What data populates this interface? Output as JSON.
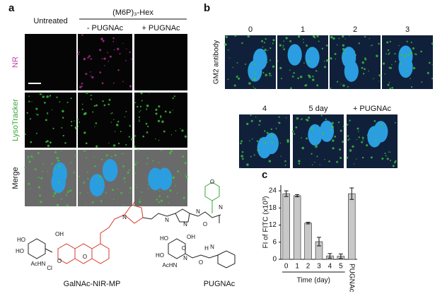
{
  "panel_a": {
    "label": "a",
    "group": "(M6P)₃-Hex",
    "columns": [
      "Untreated",
      "- PUGNAc",
      "+ PUGNAc"
    ],
    "rows": [
      "NR",
      "LysoTracker",
      "Merge"
    ]
  },
  "panel_b": {
    "label": "b",
    "ylabel": "GM2 antibody",
    "timepoints": [
      "0",
      "1",
      "2",
      "3",
      "4",
      "5 day",
      "+ PUGNAc"
    ]
  },
  "structures": {
    "names": [
      "GalNAc-NIR-MP",
      "PUGNAc"
    ],
    "atoms": [
      "HO",
      "OH",
      "HO",
      "AcHN",
      "O",
      "Cl",
      "O",
      "N",
      "N",
      "N",
      "N",
      "O",
      "O",
      "N",
      "HO",
      "OH",
      "HO",
      "AcHN",
      "N",
      "O",
      "H",
      "N",
      "O"
    ]
  },
  "chart_data": {
    "type": "bar",
    "panel_label": "c",
    "ylabel": "FI of FITC (x10³)",
    "xlabel": "Time (day)",
    "categories": [
      "0",
      "1",
      "2",
      "3",
      "4",
      "5",
      "PUGNAc"
    ],
    "values": [
      23,
      22.3,
      12.7,
      6.2,
      1.2,
      1.1,
      23
    ],
    "errors": [
      1,
      0.4,
      0.3,
      1.5,
      0.8,
      0.8,
      2
    ],
    "color": "#c8c8c8",
    "ylim": [
      0,
      26
    ],
    "yticks": [
      0,
      6,
      12,
      18,
      24
    ]
  }
}
